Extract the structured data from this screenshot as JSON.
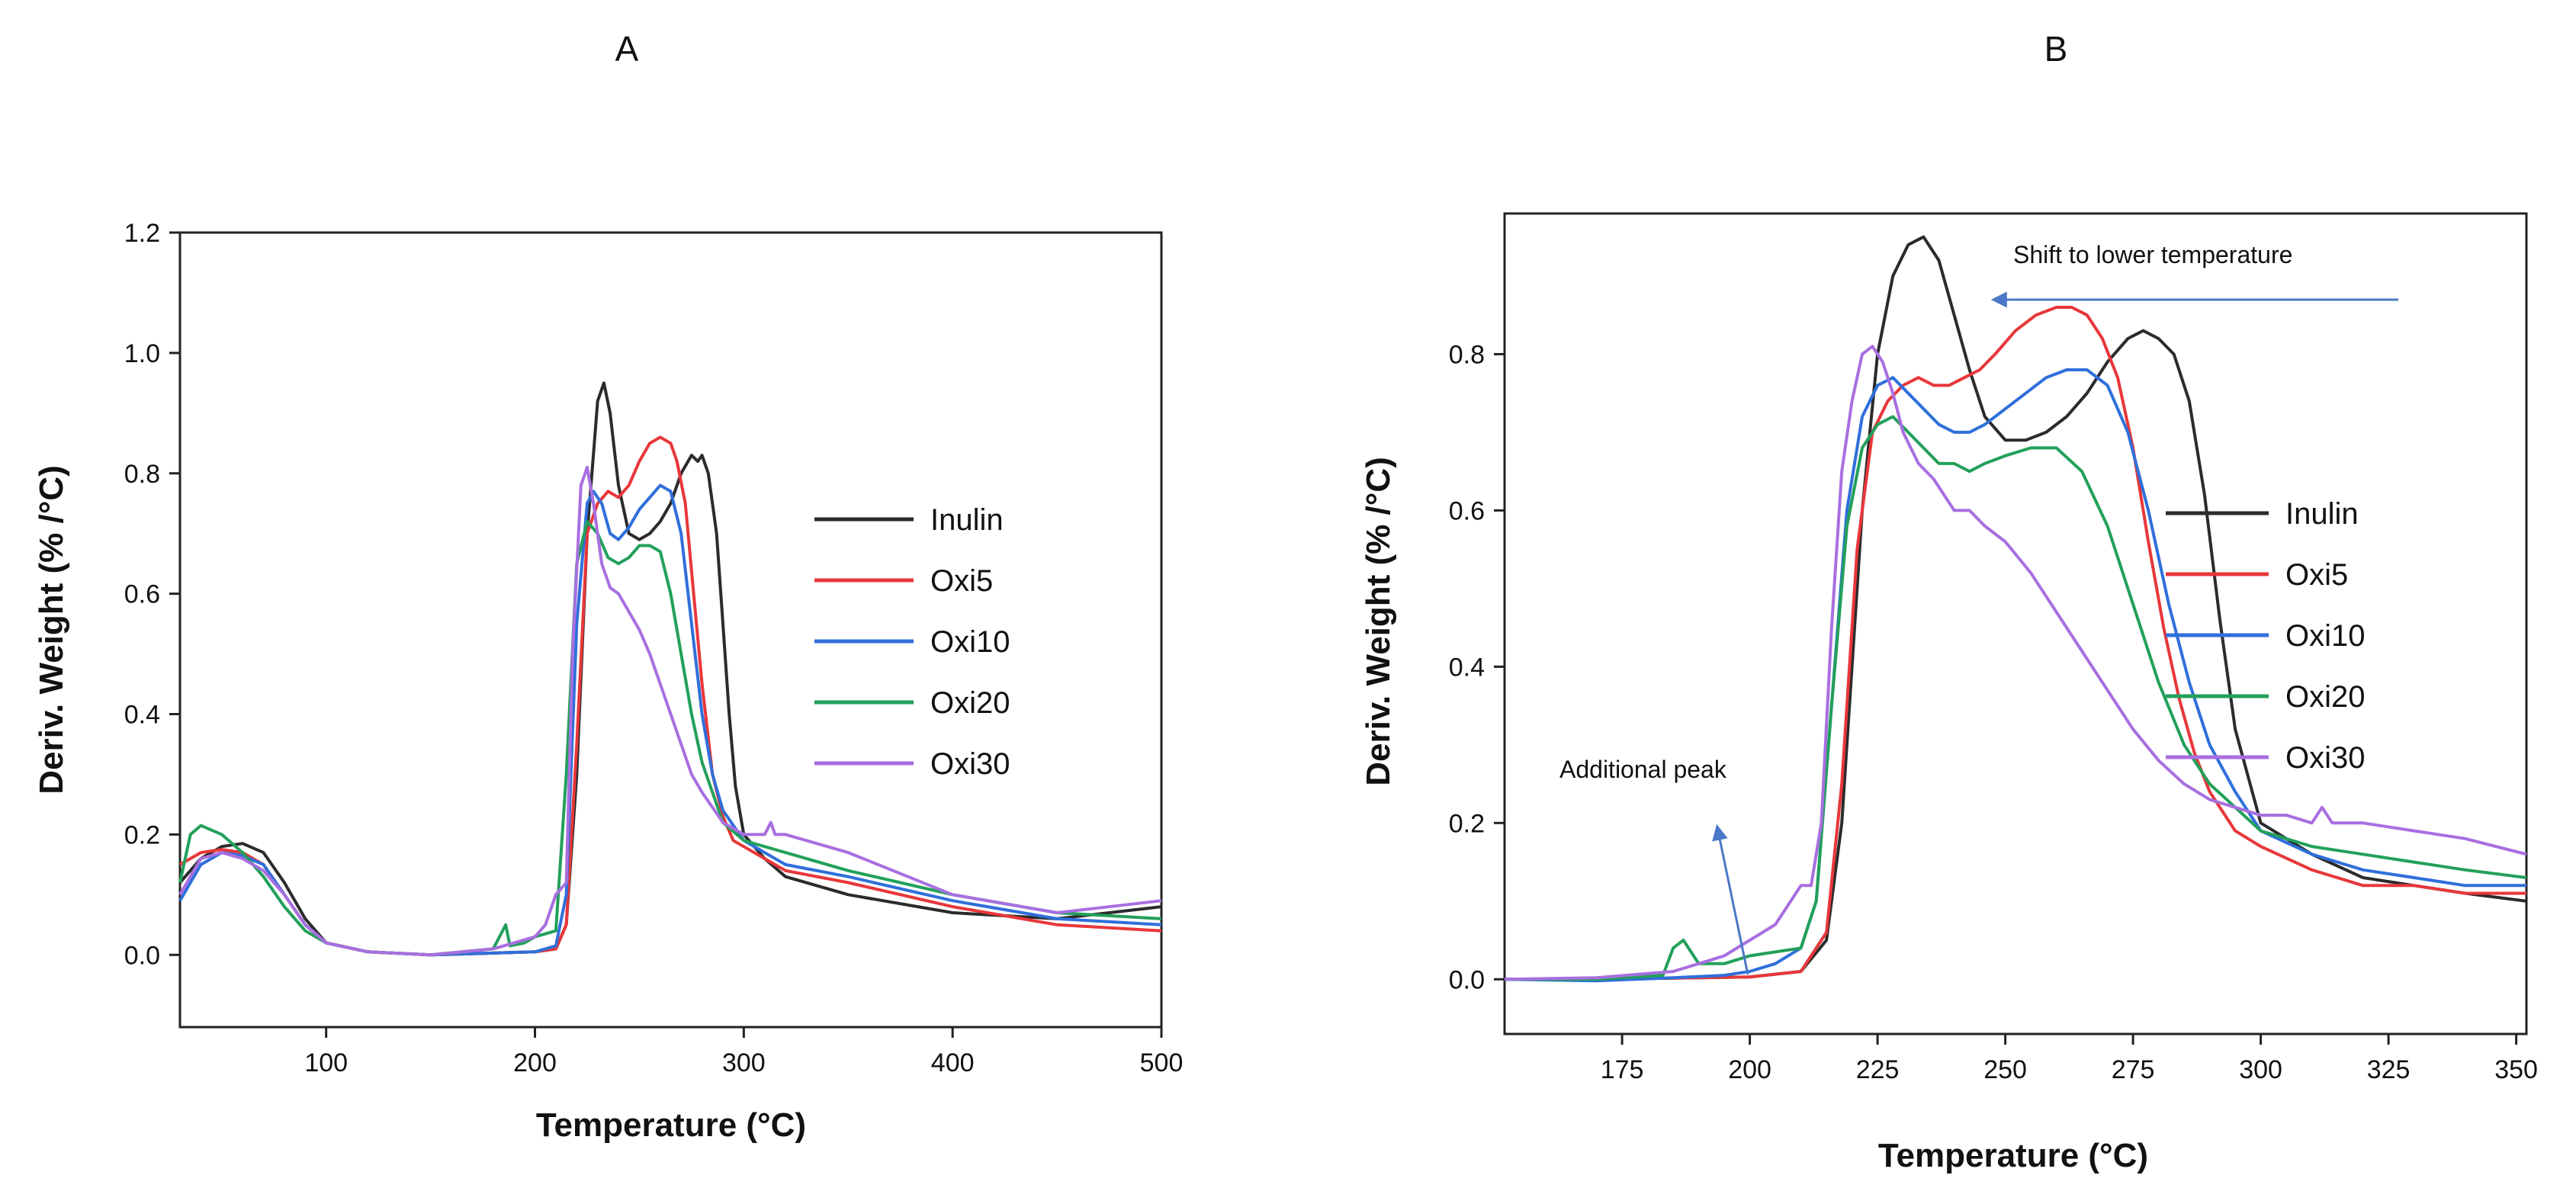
{
  "colors": {
    "Inulin": "#2b2b2b",
    "Oxi5": "#e8373a",
    "Oxi10": "#2f6fdb",
    "Oxi20": "#22a05a",
    "Oxi30": "#a86fe0",
    "arrow": "#4a78c8"
  },
  "chart_data": [
    {
      "panel": "A",
      "type": "line",
      "title": "A",
      "xlabel": "Temperature (°C)",
      "ylabel": "Deriv. Weight (% /°C)",
      "xlim": [
        30,
        500
      ],
      "ylim": [
        -0.12,
        1.2
      ],
      "xticks": [
        "100",
        "200",
        "300",
        "400",
        "500"
      ],
      "xtick_values": [
        100,
        200,
        300,
        400,
        500
      ],
      "yticks": [
        "0.0",
        "0.2",
        "0.4",
        "0.6",
        "0.8",
        "1.0",
        "1.2"
      ],
      "ytick_values": [
        0.0,
        0.2,
        0.4,
        0.6,
        0.8,
        1.0,
        1.2
      ],
      "legend": [
        "Inulin",
        "Oxi5",
        "Oxi10",
        "Oxi20",
        "Oxi30"
      ],
      "series": [
        {
          "name": "Inulin",
          "x": [
            30,
            40,
            50,
            60,
            70,
            80,
            90,
            100,
            120,
            150,
            180,
            200,
            210,
            215,
            220,
            225,
            230,
            233,
            236,
            240,
            245,
            250,
            255,
            260,
            265,
            270,
            275,
            278,
            280,
            283,
            287,
            290,
            293,
            296,
            300,
            310,
            320,
            350,
            400,
            450,
            500
          ],
          "y": [
            0.12,
            0.16,
            0.18,
            0.185,
            0.17,
            0.12,
            0.06,
            0.02,
            0.005,
            0.0,
            0.003,
            0.005,
            0.01,
            0.05,
            0.3,
            0.7,
            0.92,
            0.95,
            0.9,
            0.78,
            0.7,
            0.69,
            0.7,
            0.72,
            0.75,
            0.8,
            0.83,
            0.82,
            0.83,
            0.8,
            0.7,
            0.55,
            0.4,
            0.28,
            0.2,
            0.16,
            0.13,
            0.1,
            0.07,
            0.06,
            0.08
          ]
        },
        {
          "name": "Oxi5",
          "x": [
            30,
            40,
            50,
            60,
            70,
            80,
            90,
            100,
            120,
            150,
            180,
            200,
            210,
            215,
            220,
            225,
            230,
            235,
            240,
            245,
            250,
            255,
            260,
            265,
            268,
            272,
            276,
            280,
            285,
            290,
            295,
            300,
            310,
            320,
            350,
            400,
            450,
            500
          ],
          "y": [
            0.15,
            0.17,
            0.175,
            0.17,
            0.15,
            0.1,
            0.05,
            0.02,
            0.005,
            0.0,
            0.003,
            0.005,
            0.01,
            0.05,
            0.35,
            0.7,
            0.75,
            0.77,
            0.76,
            0.78,
            0.82,
            0.85,
            0.86,
            0.85,
            0.82,
            0.75,
            0.6,
            0.45,
            0.3,
            0.23,
            0.19,
            0.18,
            0.16,
            0.14,
            0.12,
            0.08,
            0.05,
            0.04
          ]
        },
        {
          "name": "Oxi10",
          "x": [
            30,
            40,
            50,
            60,
            70,
            80,
            90,
            100,
            120,
            150,
            180,
            200,
            210,
            215,
            220,
            225,
            228,
            232,
            236,
            240,
            245,
            250,
            255,
            260,
            265,
            270,
            275,
            280,
            285,
            290,
            300,
            310,
            320,
            350,
            400,
            450,
            500
          ],
          "y": [
            0.09,
            0.15,
            0.17,
            0.165,
            0.15,
            0.1,
            0.05,
            0.02,
            0.005,
            0.0,
            0.003,
            0.005,
            0.015,
            0.1,
            0.55,
            0.75,
            0.77,
            0.75,
            0.7,
            0.69,
            0.71,
            0.74,
            0.76,
            0.78,
            0.77,
            0.7,
            0.55,
            0.4,
            0.3,
            0.24,
            0.19,
            0.17,
            0.15,
            0.13,
            0.09,
            0.06,
            0.05
          ]
        },
        {
          "name": "Oxi20",
          "x": [
            30,
            35,
            40,
            50,
            60,
            70,
            80,
            90,
            100,
            120,
            150,
            180,
            186,
            188,
            195,
            200,
            210,
            215,
            220,
            225,
            230,
            235,
            240,
            245,
            250,
            255,
            260,
            265,
            270,
            275,
            280,
            290,
            300,
            310,
            320,
            350,
            400,
            450,
            500
          ],
          "y": [
            0.12,
            0.2,
            0.215,
            0.2,
            0.17,
            0.13,
            0.08,
            0.04,
            0.02,
            0.005,
            0.0,
            0.01,
            0.05,
            0.015,
            0.02,
            0.03,
            0.04,
            0.3,
            0.65,
            0.72,
            0.7,
            0.66,
            0.65,
            0.66,
            0.68,
            0.68,
            0.67,
            0.6,
            0.5,
            0.4,
            0.32,
            0.22,
            0.19,
            0.18,
            0.17,
            0.14,
            0.1,
            0.07,
            0.06
          ]
        },
        {
          "name": "Oxi30",
          "x": [
            30,
            40,
            50,
            60,
            70,
            80,
            90,
            100,
            120,
            150,
            180,
            200,
            205,
            210,
            215,
            218,
            222,
            225,
            228,
            232,
            236,
            240,
            245,
            250,
            255,
            260,
            265,
            270,
            275,
            280,
            290,
            300,
            310,
            313,
            315,
            320,
            350,
            400,
            450,
            500
          ],
          "y": [
            0.1,
            0.16,
            0.17,
            0.16,
            0.14,
            0.1,
            0.05,
            0.02,
            0.005,
            0.0,
            0.01,
            0.03,
            0.05,
            0.1,
            0.12,
            0.5,
            0.78,
            0.81,
            0.75,
            0.65,
            0.61,
            0.6,
            0.57,
            0.54,
            0.5,
            0.45,
            0.4,
            0.35,
            0.3,
            0.27,
            0.22,
            0.2,
            0.2,
            0.22,
            0.2,
            0.2,
            0.17,
            0.1,
            0.07,
            0.09
          ]
        }
      ]
    },
    {
      "panel": "B",
      "type": "line",
      "title": "B",
      "xlabel": "Temperature (°C)",
      "ylabel": "Deriv. Weight (% /°C)",
      "xlim": [
        152,
        352
      ],
      "ylim": [
        -0.07,
        0.98
      ],
      "xticks": [
        "175",
        "200",
        "225",
        "250",
        "275",
        "300",
        "325",
        "350"
      ],
      "xtick_values": [
        175,
        200,
        225,
        250,
        275,
        300,
        325,
        350
      ],
      "yticks": [
        "0.0",
        "0.2",
        "0.4",
        "0.6",
        "0.8"
      ],
      "ytick_values": [
        0.0,
        0.2,
        0.4,
        0.6,
        0.8
      ],
      "legend": [
        "Inulin",
        "Oxi5",
        "Oxi10",
        "Oxi20",
        "Oxi30"
      ],
      "annotations": [
        "Shift to lower temperature",
        "Additional peak"
      ],
      "series": [
        {
          "name": "Inulin",
          "x": [
            152,
            170,
            190,
            200,
            210,
            215,
            218,
            220,
            222,
            225,
            228,
            231,
            234,
            237,
            240,
            243,
            246,
            250,
            254,
            258,
            262,
            266,
            270,
            274,
            277,
            280,
            283,
            286,
            289,
            292,
            295,
            300,
            310,
            320,
            330,
            340,
            352
          ],
          "y": [
            0.0,
            0.0,
            0.002,
            0.003,
            0.01,
            0.05,
            0.2,
            0.4,
            0.6,
            0.8,
            0.9,
            0.94,
            0.95,
            0.92,
            0.85,
            0.78,
            0.72,
            0.69,
            0.69,
            0.7,
            0.72,
            0.75,
            0.79,
            0.82,
            0.83,
            0.82,
            0.8,
            0.74,
            0.62,
            0.46,
            0.32,
            0.2,
            0.16,
            0.13,
            0.12,
            0.11,
            0.1
          ]
        },
        {
          "name": "Oxi5",
          "x": [
            152,
            170,
            190,
            200,
            210,
            215,
            218,
            221,
            224,
            227,
            230,
            233,
            236,
            239,
            242,
            245,
            248,
            252,
            256,
            260,
            263,
            266,
            269,
            272,
            275,
            278,
            281,
            284,
            287,
            290,
            295,
            300,
            310,
            320,
            330,
            340,
            352
          ],
          "y": [
            0.0,
            0.0,
            0.002,
            0.003,
            0.01,
            0.06,
            0.25,
            0.55,
            0.7,
            0.74,
            0.76,
            0.77,
            0.76,
            0.76,
            0.77,
            0.78,
            0.8,
            0.83,
            0.85,
            0.86,
            0.86,
            0.85,
            0.82,
            0.77,
            0.68,
            0.56,
            0.45,
            0.36,
            0.29,
            0.24,
            0.19,
            0.17,
            0.14,
            0.12,
            0.12,
            0.11,
            0.11
          ]
        },
        {
          "name": "Oxi10",
          "x": [
            152,
            170,
            185,
            195,
            200,
            205,
            210,
            213,
            216,
            219,
            222,
            225,
            228,
            231,
            234,
            237,
            240,
            243,
            246,
            250,
            254,
            258,
            262,
            266,
            270,
            274,
            278,
            282,
            286,
            290,
            295,
            300,
            310,
            320,
            330,
            340,
            352
          ],
          "y": [
            0.0,
            -0.002,
            0.002,
            0.005,
            0.01,
            0.02,
            0.04,
            0.1,
            0.35,
            0.6,
            0.72,
            0.76,
            0.77,
            0.75,
            0.73,
            0.71,
            0.7,
            0.7,
            0.71,
            0.73,
            0.75,
            0.77,
            0.78,
            0.78,
            0.76,
            0.7,
            0.6,
            0.48,
            0.38,
            0.3,
            0.24,
            0.19,
            0.16,
            0.14,
            0.13,
            0.12,
            0.12
          ]
        },
        {
          "name": "Oxi20",
          "x": [
            152,
            170,
            183,
            185,
            187,
            190,
            195,
            200,
            205,
            210,
            213,
            216,
            219,
            222,
            225,
            228,
            231,
            234,
            237,
            240,
            243,
            246,
            250,
            255,
            260,
            265,
            270,
            275,
            280,
            285,
            290,
            295,
            300,
            310,
            320,
            330,
            340,
            352
          ],
          "y": [
            0.0,
            0.0,
            0.005,
            0.04,
            0.05,
            0.02,
            0.02,
            0.03,
            0.035,
            0.04,
            0.1,
            0.35,
            0.58,
            0.68,
            0.71,
            0.72,
            0.7,
            0.68,
            0.66,
            0.66,
            0.65,
            0.66,
            0.67,
            0.68,
            0.68,
            0.65,
            0.58,
            0.48,
            0.38,
            0.3,
            0.25,
            0.22,
            0.19,
            0.17,
            0.16,
            0.15,
            0.14,
            0.13
          ]
        },
        {
          "name": "Oxi30",
          "x": [
            152,
            170,
            185,
            190,
            195,
            200,
            205,
            208,
            210,
            212,
            214,
            216,
            218,
            220,
            222,
            224,
            226,
            228,
            230,
            233,
            236,
            240,
            243,
            246,
            250,
            255,
            260,
            265,
            270,
            275,
            280,
            285,
            290,
            295,
            300,
            305,
            310,
            312,
            314,
            320,
            330,
            340,
            352
          ],
          "y": [
            0.0,
            0.002,
            0.01,
            0.02,
            0.03,
            0.05,
            0.07,
            0.1,
            0.12,
            0.12,
            0.2,
            0.45,
            0.65,
            0.74,
            0.8,
            0.81,
            0.79,
            0.75,
            0.7,
            0.66,
            0.64,
            0.6,
            0.6,
            0.58,
            0.56,
            0.52,
            0.47,
            0.42,
            0.37,
            0.32,
            0.28,
            0.25,
            0.23,
            0.22,
            0.21,
            0.21,
            0.2,
            0.22,
            0.2,
            0.2,
            0.19,
            0.18,
            0.16
          ]
        }
      ]
    }
  ]
}
